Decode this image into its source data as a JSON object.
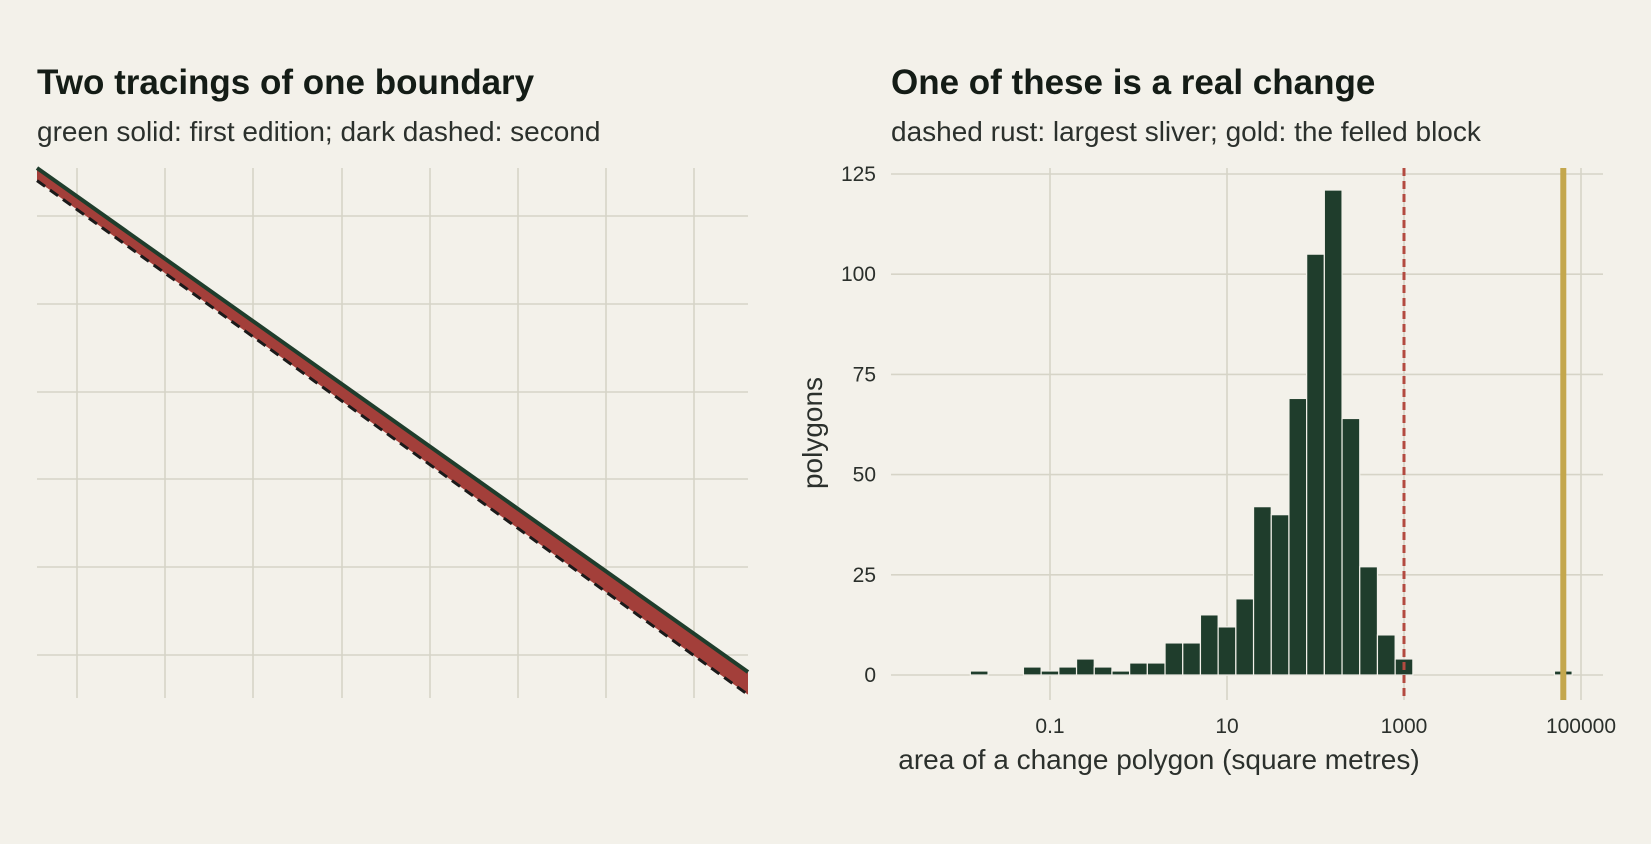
{
  "colors": {
    "background": "#f3f1ea",
    "grid": "#d6d4c7",
    "first_edition": "#1f3d2c",
    "second_edition": "#1a1a1a",
    "sliver_fill": "#a33f3a",
    "bar": "#1f3d2c",
    "largest_sliver_line": "#b34a40",
    "felled_block_line": "#c4a74d"
  },
  "chart_data": [
    {
      "type": "line",
      "title": "Two tracings of one boundary",
      "subtitle": "green solid: first edition; dark dashed: second",
      "xlabel": "",
      "ylabel": "",
      "axis_ticks_labeled": false,
      "grid": true,
      "series": [
        {
          "name": "first edition",
          "x": [
            0,
            1
          ],
          "y": [
            1.0,
            0.0
          ]
        },
        {
          "name": "second edition",
          "x": [
            0,
            1
          ],
          "y": [
            0.975,
            -0.045
          ]
        }
      ]
    },
    {
      "type": "bar",
      "title": "One of these is a real change",
      "subtitle": "dashed rust: largest sliver; gold: the felled block",
      "xlabel": "area of a change polygon (square metres)",
      "ylabel": "polygons",
      "x_scale": "log10",
      "xlim_log10": [
        -2.3,
        5.2
      ],
      "ylim": [
        0,
        125
      ],
      "x_ticks": [
        "0.1",
        "10",
        "1000",
        "100000"
      ],
      "x_tick_values_log10": [
        -1,
        1,
        3,
        5
      ],
      "y_ticks": [
        "0",
        "25",
        "50",
        "75",
        "100",
        "125"
      ],
      "y_tick_values": [
        0,
        25,
        50,
        75,
        100,
        125
      ],
      "grid": true,
      "bin_width_log10": 0.2,
      "bins": [
        {
          "start_log10": -1.9,
          "count": 1
        },
        {
          "start_log10": -1.7,
          "count": 0
        },
        {
          "start_log10": -1.5,
          "count": 0
        },
        {
          "start_log10": -1.3,
          "count": 2
        },
        {
          "start_log10": -1.1,
          "count": 1
        },
        {
          "start_log10": -0.9,
          "count": 2
        },
        {
          "start_log10": -0.7,
          "count": 4
        },
        {
          "start_log10": -0.5,
          "count": 2
        },
        {
          "start_log10": -0.3,
          "count": 1
        },
        {
          "start_log10": -0.1,
          "count": 3
        },
        {
          "start_log10": 0.1,
          "count": 3
        },
        {
          "start_log10": 0.3,
          "count": 8
        },
        {
          "start_log10": 0.5,
          "count": 8
        },
        {
          "start_log10": 0.7,
          "count": 15
        },
        {
          "start_log10": 0.9,
          "count": 12
        },
        {
          "start_log10": 1.1,
          "count": 19
        },
        {
          "start_log10": 1.3,
          "count": 42
        },
        {
          "start_log10": 1.5,
          "count": 40
        },
        {
          "start_log10": 1.7,
          "count": 69
        },
        {
          "start_log10": 1.9,
          "count": 105
        },
        {
          "start_log10": 2.1,
          "count": 121
        },
        {
          "start_log10": 2.3,
          "count": 64
        },
        {
          "start_log10": 2.5,
          "count": 27
        },
        {
          "start_log10": 2.7,
          "count": 10
        },
        {
          "start_log10": 2.9,
          "count": 4
        },
        {
          "start_log10": 4.7,
          "count": 1
        }
      ],
      "reference_lines": [
        {
          "name": "largest sliver",
          "x_log10": 3.0,
          "style": "dashed"
        },
        {
          "name": "the felled block",
          "x_log10": 4.8,
          "style": "solid"
        }
      ]
    }
  ]
}
